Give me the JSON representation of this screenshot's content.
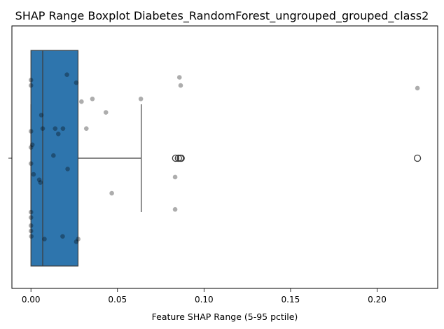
{
  "chart_data": {
    "type": "boxplot",
    "title": "SHAP Range Boxplot Diabetes_RandomForest_ungrouped_grouped_class2",
    "xlabel": "Feature SHAP Range (5-95 pctile)",
    "ylabel": "",
    "xlim": [
      -0.011,
      0.235
    ],
    "x_ticks": [
      0.0,
      0.05,
      0.1,
      0.15,
      0.2
    ],
    "x_tick_labels": [
      "0.00",
      "0.05",
      "0.10",
      "0.15",
      "0.20"
    ],
    "grid": false,
    "box": {
      "min": 0.0,
      "q1": 0.0,
      "median": 0.0068,
      "q3": 0.0272,
      "whisker_high": 0.0637,
      "color": "#2e75ad",
      "outliers": [
        0.0836,
        0.0852,
        0.0863,
        0.0868,
        0.2233
      ]
    },
    "strip_points": [
      {
        "x": 0.0,
        "jitter": -0.29
      },
      {
        "x": 0.0,
        "jitter": -0.27
      },
      {
        "x": 0.0,
        "jitter": -0.1
      },
      {
        "x": 0.0,
        "jitter": -0.04
      },
      {
        "x": 0.0,
        "jitter": 0.02
      },
      {
        "x": 0.0,
        "jitter": 0.25
      },
      {
        "x": 0.0,
        "jitter": 0.22
      },
      {
        "x": 0.0,
        "jitter": 0.2
      },
      {
        "x": 0.0,
        "jitter": 0.27
      },
      {
        "x": 0.0002,
        "jitter": 0.29
      },
      {
        "x": 0.0008,
        "jitter": -0.05
      },
      {
        "x": 0.0015,
        "jitter": 0.06
      },
      {
        "x": 0.0048,
        "jitter": 0.08
      },
      {
        "x": 0.0055,
        "jitter": 0.09
      },
      {
        "x": 0.006,
        "jitter": -0.16
      },
      {
        "x": 0.0068,
        "jitter": -0.11
      },
      {
        "x": 0.0078,
        "jitter": 0.3
      },
      {
        "x": 0.013,
        "jitter": -0.01
      },
      {
        "x": 0.014,
        "jitter": -0.11
      },
      {
        "x": 0.0158,
        "jitter": -0.09
      },
      {
        "x": 0.0185,
        "jitter": -0.11
      },
      {
        "x": 0.0183,
        "jitter": 0.29
      },
      {
        "x": 0.0208,
        "jitter": -0.31
      },
      {
        "x": 0.0212,
        "jitter": 0.04
      },
      {
        "x": 0.0262,
        "jitter": -0.28
      },
      {
        "x": 0.0262,
        "jitter": 0.31
      },
      {
        "x": 0.0273,
        "jitter": 0.3
      },
      {
        "x": 0.0292,
        "jitter": -0.21
      },
      {
        "x": 0.032,
        "jitter": -0.11
      },
      {
        "x": 0.0355,
        "jitter": -0.22
      },
      {
        "x": 0.0433,
        "jitter": -0.17
      },
      {
        "x": 0.0467,
        "jitter": 0.13
      },
      {
        "x": 0.0635,
        "jitter": -0.22
      },
      {
        "x": 0.0833,
        "jitter": 0.07
      },
      {
        "x": 0.0833,
        "jitter": 0.19
      },
      {
        "x": 0.0858,
        "jitter": -0.3
      },
      {
        "x": 0.0865,
        "jitter": -0.27
      },
      {
        "x": 0.2233,
        "jitter": -0.26
      }
    ]
  }
}
